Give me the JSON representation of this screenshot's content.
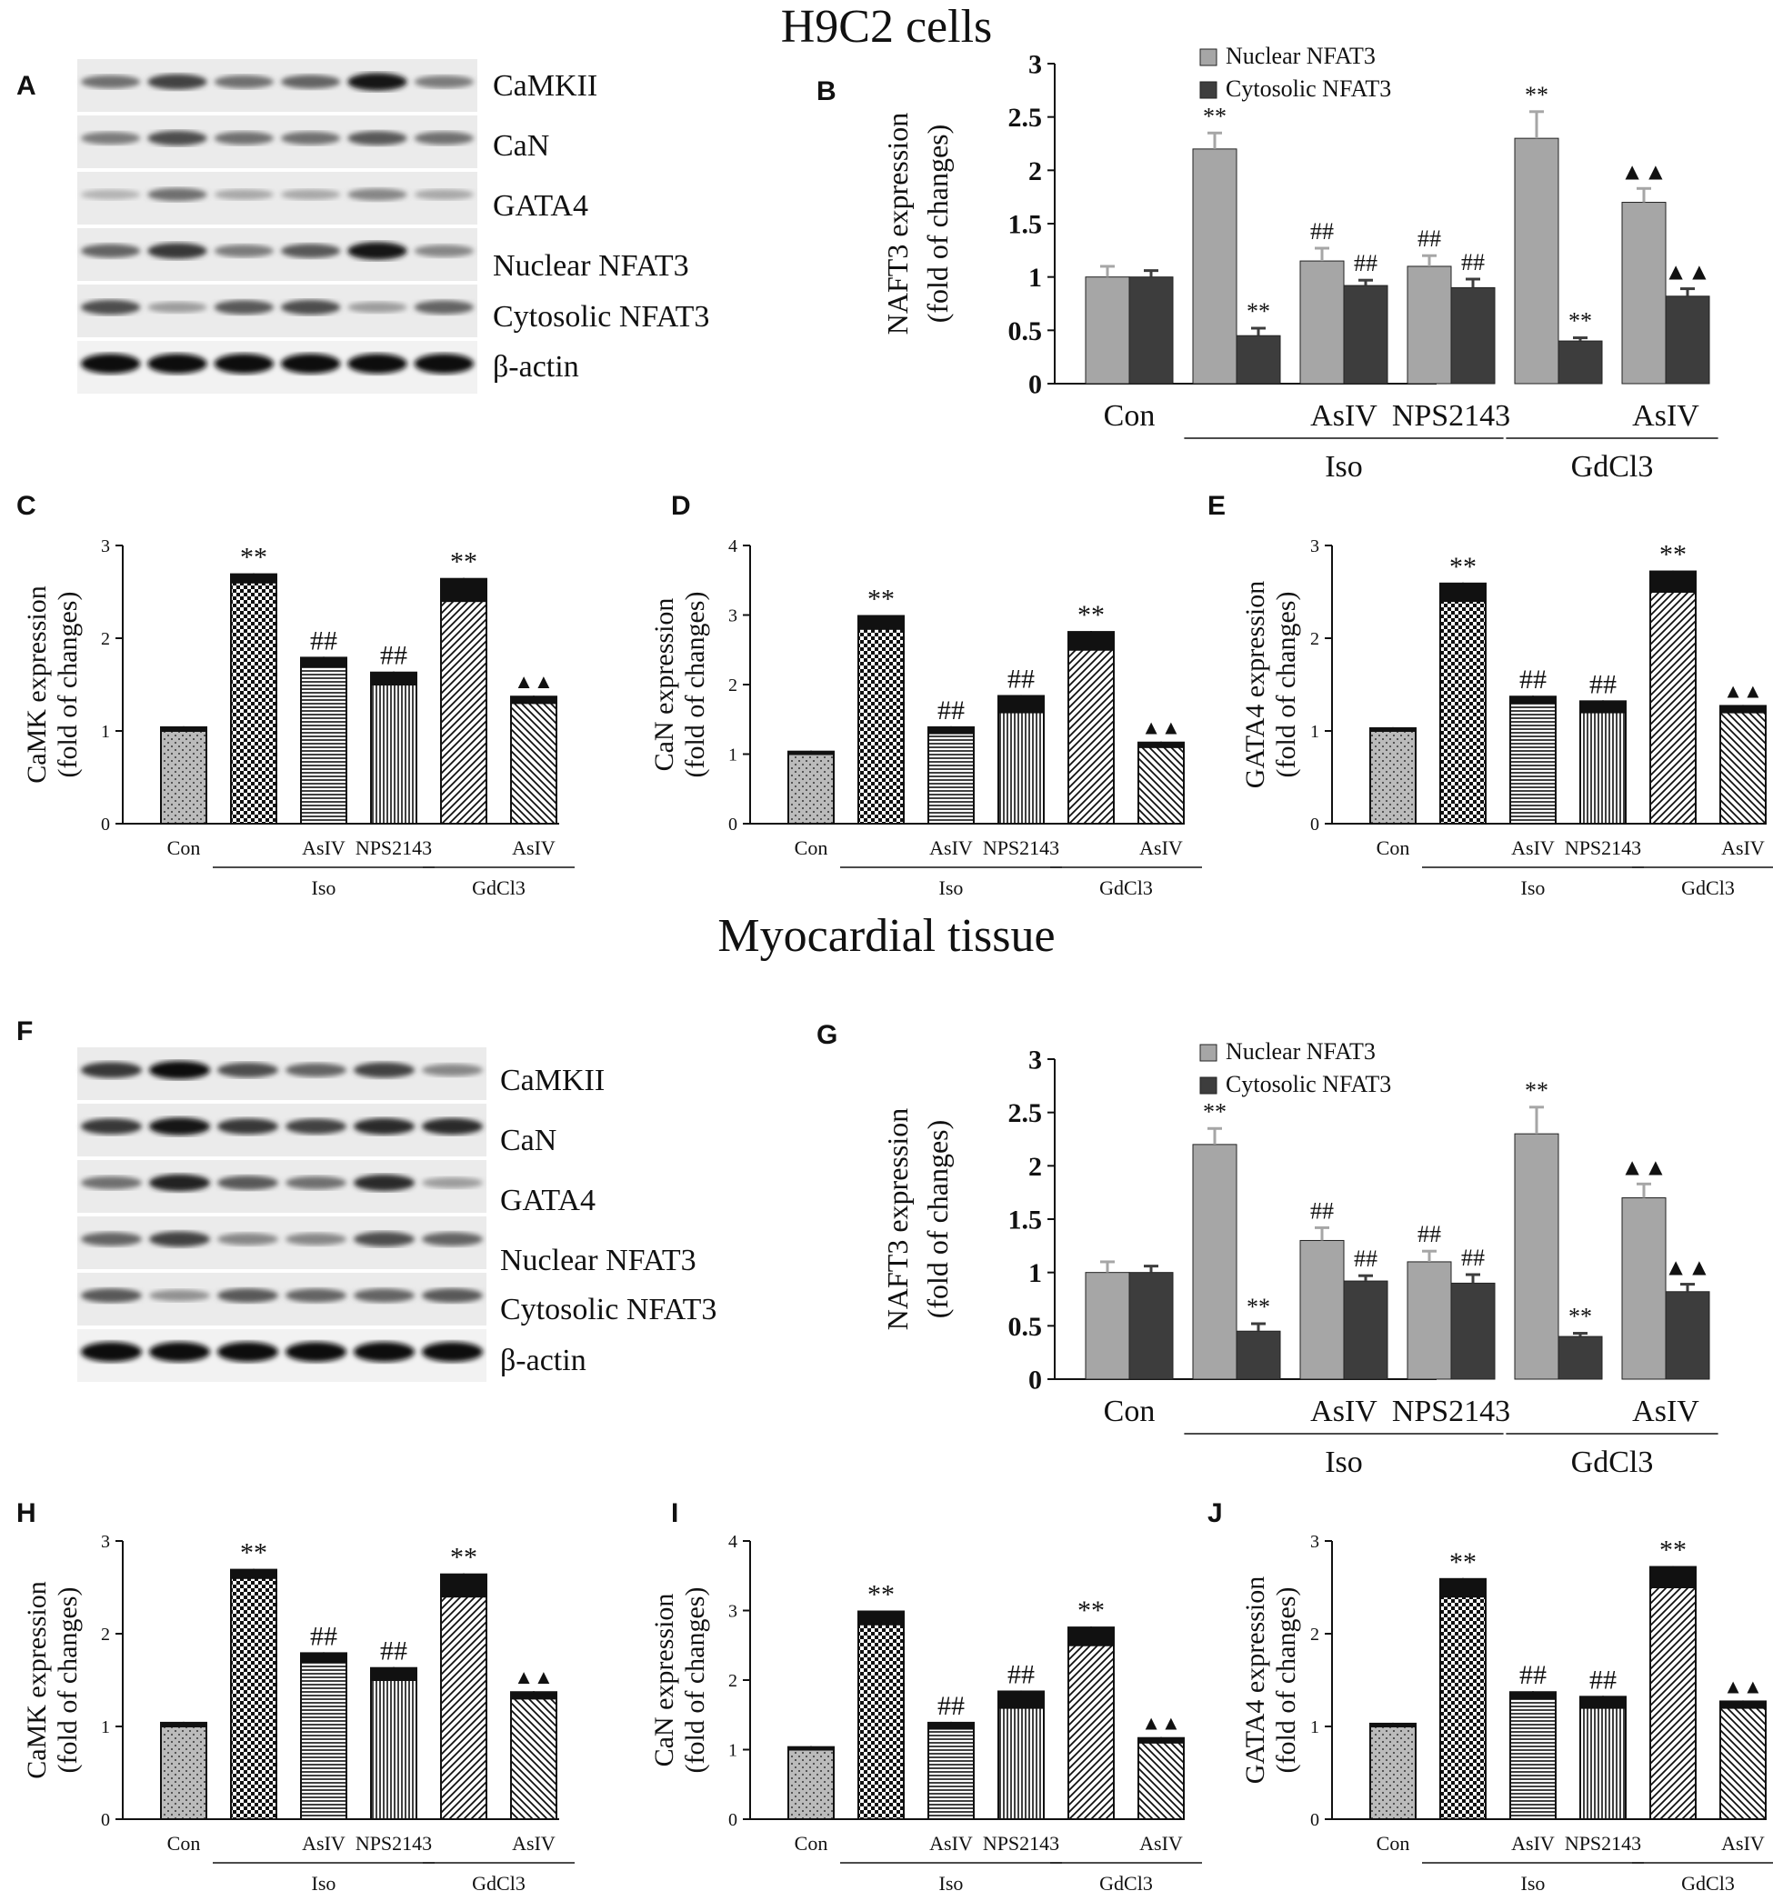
{
  "titles": {
    "top": "H9C2 cells",
    "bottom": "Myocardial tissue"
  },
  "panel_letters": [
    "A",
    "B",
    "C",
    "D",
    "E",
    "F",
    "G",
    "H",
    "I",
    "J"
  ],
  "blots": {
    "A": {
      "rows": [
        "CaMKII",
        "CaN",
        "GATA4",
        "Nuclear NFAT3",
        "Cytosolic NFAT3",
        "β-actin"
      ],
      "intensity": [
        [
          0.55,
          0.75,
          0.55,
          0.6,
          0.95,
          0.5
        ],
        [
          0.5,
          0.7,
          0.55,
          0.55,
          0.65,
          0.55
        ],
        [
          0.25,
          0.55,
          0.3,
          0.3,
          0.45,
          0.3
        ],
        [
          0.6,
          0.8,
          0.5,
          0.65,
          0.95,
          0.45
        ],
        [
          0.7,
          0.35,
          0.65,
          0.7,
          0.35,
          0.6
        ],
        [
          1,
          1,
          1,
          1,
          1,
          1
        ]
      ]
    },
    "F": {
      "rows": [
        "CaMKII",
        "CaN",
        "GATA4",
        "Nuclear NFAT3",
        "Cytosolic NFAT3",
        "β-actin"
      ],
      "intensity": [
        [
          0.8,
          1,
          0.7,
          0.6,
          0.75,
          0.45
        ],
        [
          0.8,
          0.95,
          0.8,
          0.75,
          0.85,
          0.85
        ],
        [
          0.55,
          0.9,
          0.65,
          0.55,
          0.85,
          0.35
        ],
        [
          0.6,
          0.75,
          0.45,
          0.45,
          0.7,
          0.6
        ],
        [
          0.65,
          0.4,
          0.65,
          0.6,
          0.6,
          0.65
        ],
        [
          1,
          1,
          1,
          1,
          1,
          1
        ]
      ]
    }
  },
  "chart_data": [
    {
      "id": "B",
      "type": "bar",
      "ylabel": [
        "NAFT3  expression",
        "(fold of changes)"
      ],
      "ylim": [
        0,
        3
      ],
      "yticks": [
        "0",
        "0.5",
        "1",
        "1.5",
        "2",
        "2.5",
        "3"
      ],
      "categories": [
        "Con",
        "Iso",
        "Iso+AsIV",
        "Iso+NPS2143",
        "GdCl3",
        "GdCl3+AsIV"
      ],
      "series": [
        {
          "name": "Nuclear NFAT3",
          "color": "#a6a6a6",
          "values": [
            1.0,
            2.2,
            1.15,
            1.1,
            2.3,
            1.7
          ],
          "errors": [
            0.1,
            0.15,
            0.12,
            0.1,
            0.25,
            0.13
          ],
          "marks": [
            "",
            "**",
            "##",
            "##",
            "**",
            "▲▲"
          ]
        },
        {
          "name": "Cytosolic NFAT3",
          "color": "#3d3d3d",
          "values": [
            1.0,
            0.45,
            0.92,
            0.9,
            0.4,
            0.82
          ],
          "errors": [
            0.06,
            0.07,
            0.05,
            0.08,
            0.03,
            0.07
          ],
          "marks": [
            "",
            "**",
            "##",
            "##",
            "**",
            "▲▲"
          ]
        }
      ],
      "xlabels": [
        "Con",
        "",
        "AsIV",
        "NPS2143",
        "",
        "AsIV"
      ],
      "group_labels": [
        "Iso",
        "GdCl3"
      ]
    },
    {
      "id": "C",
      "type": "bar",
      "ylabel": [
        "CaMK expression",
        "(fold of changes)"
      ],
      "ylim": [
        0,
        3
      ],
      "yticks": [
        "0",
        "1",
        "2",
        "3"
      ],
      "categories": [
        "Con",
        "Iso",
        "Iso+AsIV",
        "Iso+NPS2143",
        "GdCl3",
        "GdCl3+AsIV"
      ],
      "values": [
        1.0,
        2.6,
        1.7,
        1.5,
        2.4,
        1.3
      ],
      "errors": [
        0.05,
        0.1,
        0.1,
        0.14,
        0.25,
        0.08
      ],
      "marks": [
        "",
        "**",
        "##",
        "##",
        "**",
        "▲▲"
      ],
      "xlabels": [
        "Con",
        "",
        "AsIV",
        "NPS2143",
        "",
        "AsIV"
      ],
      "group_labels": [
        "Iso",
        "GdCl3"
      ]
    },
    {
      "id": "D",
      "type": "bar",
      "ylabel": [
        "CaN expression",
        "(fold of changes)"
      ],
      "ylim": [
        0,
        4
      ],
      "yticks": [
        "0",
        "1",
        "2",
        "3",
        "4"
      ],
      "categories": [
        "Con",
        "Iso",
        "Iso+AsIV",
        "Iso+NPS2143",
        "GdCl3",
        "GdCl3+AsIV"
      ],
      "values": [
        1.0,
        2.8,
        1.3,
        1.6,
        2.5,
        1.1
      ],
      "errors": [
        0.05,
        0.2,
        0.1,
        0.25,
        0.27,
        0.08
      ],
      "marks": [
        "",
        "**",
        "##",
        "##",
        "**",
        "▲▲"
      ],
      "xlabels": [
        "Con",
        "",
        "AsIV",
        "NPS2143",
        "",
        "AsIV"
      ],
      "group_labels": [
        "Iso",
        "GdCl3"
      ]
    },
    {
      "id": "E",
      "type": "bar",
      "ylabel": [
        "GATA4 expression",
        "(fold of changes)"
      ],
      "ylim": [
        0,
        3
      ],
      "yticks": [
        "0",
        "1",
        "2",
        "3"
      ],
      "categories": [
        "Con",
        "Iso",
        "Iso+AsIV",
        "Iso+NPS2143",
        "GdCl3",
        "GdCl3+AsIV"
      ],
      "values": [
        1.0,
        2.4,
        1.3,
        1.2,
        2.5,
        1.2
      ],
      "errors": [
        0.04,
        0.2,
        0.08,
        0.13,
        0.23,
        0.08
      ],
      "marks": [
        "",
        "**",
        "##",
        "##",
        "**",
        "▲▲"
      ],
      "xlabels": [
        "Con",
        "",
        "AsIV",
        "NPS2143",
        "",
        "AsIV"
      ],
      "group_labels": [
        "Iso",
        "GdCl3"
      ]
    },
    {
      "id": "G",
      "type": "bar",
      "ylabel": [
        "NAFT3  expression",
        "(fold of changes)"
      ],
      "ylim": [
        0,
        3
      ],
      "yticks": [
        "0",
        "0.5",
        "1",
        "1.5",
        "2",
        "2.5",
        "3"
      ],
      "categories": [
        "Con",
        "Iso",
        "Iso+AsIV",
        "Iso+NPS2143",
        "GdCl3",
        "GdCl3+AsIV"
      ],
      "series": [
        {
          "name": "Nuclear NFAT3",
          "color": "#a6a6a6",
          "values": [
            1.0,
            2.2,
            1.3,
            1.1,
            2.3,
            1.7
          ],
          "errors": [
            0.1,
            0.15,
            0.12,
            0.1,
            0.25,
            0.13
          ],
          "marks": [
            "",
            "**",
            "##",
            "##",
            "**",
            "▲▲"
          ]
        },
        {
          "name": "Cytosolic NFAT3",
          "color": "#3d3d3d",
          "values": [
            1.0,
            0.45,
            0.92,
            0.9,
            0.4,
            0.82
          ],
          "errors": [
            0.06,
            0.07,
            0.05,
            0.08,
            0.03,
            0.07
          ],
          "marks": [
            "",
            "**",
            "##",
            "##",
            "**",
            "▲▲"
          ]
        }
      ],
      "xlabels": [
        "Con",
        "",
        "AsIV",
        "NPS2143",
        "",
        "AsIV"
      ],
      "group_labels": [
        "Iso",
        "GdCl3"
      ]
    },
    {
      "id": "H",
      "type": "bar",
      "ylabel": [
        "CaMK expression",
        "(fold of changes)"
      ],
      "ylim": [
        0,
        3
      ],
      "yticks": [
        "0",
        "1",
        "2",
        "3"
      ],
      "categories": [
        "Con",
        "Iso",
        "Iso+AsIV",
        "Iso+NPS2143",
        "GdCl3",
        "GdCl3+AsIV"
      ],
      "values": [
        1.0,
        2.6,
        1.7,
        1.5,
        2.4,
        1.3
      ],
      "errors": [
        0.05,
        0.1,
        0.1,
        0.14,
        0.25,
        0.08
      ],
      "marks": [
        "",
        "**",
        "##",
        "##",
        "**",
        "▲▲"
      ],
      "xlabels": [
        "Con",
        "",
        "AsIV",
        "NPS2143",
        "",
        "AsIV"
      ],
      "group_labels": [
        "Iso",
        "GdCl3"
      ]
    },
    {
      "id": "I",
      "type": "bar",
      "ylabel": [
        "CaN expression",
        "(fold of changes)"
      ],
      "ylim": [
        0,
        4
      ],
      "yticks": [
        "0",
        "1",
        "2",
        "3",
        "4"
      ],
      "categories": [
        "Con",
        "Iso",
        "Iso+AsIV",
        "Iso+NPS2143",
        "GdCl3",
        "GdCl3+AsIV"
      ],
      "values": [
        1.0,
        2.8,
        1.3,
        1.6,
        2.5,
        1.1
      ],
      "errors": [
        0.05,
        0.2,
        0.1,
        0.25,
        0.27,
        0.08
      ],
      "marks": [
        "",
        "**",
        "##",
        "##",
        "**",
        "▲▲"
      ],
      "xlabels": [
        "Con",
        "",
        "AsIV",
        "NPS2143",
        "",
        "AsIV"
      ],
      "group_labels": [
        "Iso",
        "GdCl3"
      ]
    },
    {
      "id": "J",
      "type": "bar",
      "ylabel": [
        "GATA4 expression",
        "(fold of changes)"
      ],
      "ylim": [
        0,
        3
      ],
      "yticks": [
        "0",
        "1",
        "2",
        "3"
      ],
      "categories": [
        "Con",
        "Iso",
        "Iso+AsIV",
        "Iso+NPS2143",
        "GdCl3",
        "GdCl3+AsIV"
      ],
      "values": [
        1.0,
        2.4,
        1.3,
        1.2,
        2.5,
        1.2
      ],
      "errors": [
        0.04,
        0.2,
        0.08,
        0.13,
        0.23,
        0.08
      ],
      "marks": [
        "",
        "**",
        "##",
        "##",
        "**",
        "▲▲"
      ],
      "xlabels": [
        "Con",
        "",
        "AsIV",
        "NPS2143",
        "",
        "AsIV"
      ],
      "group_labels": [
        "Iso",
        "GdCl3"
      ]
    }
  ]
}
